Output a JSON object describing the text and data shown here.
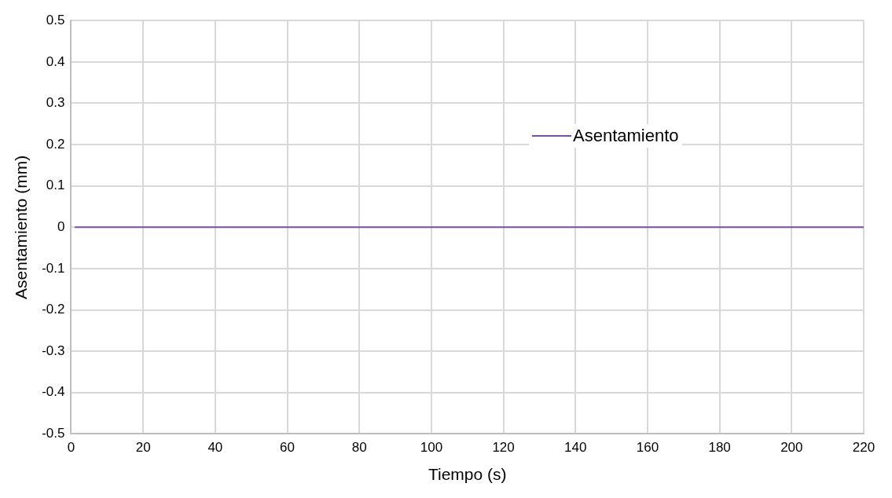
{
  "chart_data": {
    "type": "line",
    "xlabel": "Tiempo (s)",
    "ylabel": "Asentamiento (mm)",
    "series": [
      {
        "name": "Asentamiento",
        "color": "#7b4fa6",
        "x": [
          1,
          220
        ],
        "values": [
          0,
          0
        ]
      }
    ],
    "xlim": [
      0,
      220
    ],
    "xticks": [
      0,
      20,
      40,
      60,
      80,
      100,
      120,
      140,
      160,
      180,
      200,
      220
    ],
    "ylim": [
      -0.5,
      0.5
    ],
    "yticks": [
      -0.5,
      -0.4,
      -0.3,
      -0.2,
      -0.1,
      0,
      0.1,
      0.2,
      0.3,
      0.4,
      0.5
    ],
    "grid": true,
    "legend": "top right",
    "marker": "none",
    "line_style": "solid"
  }
}
